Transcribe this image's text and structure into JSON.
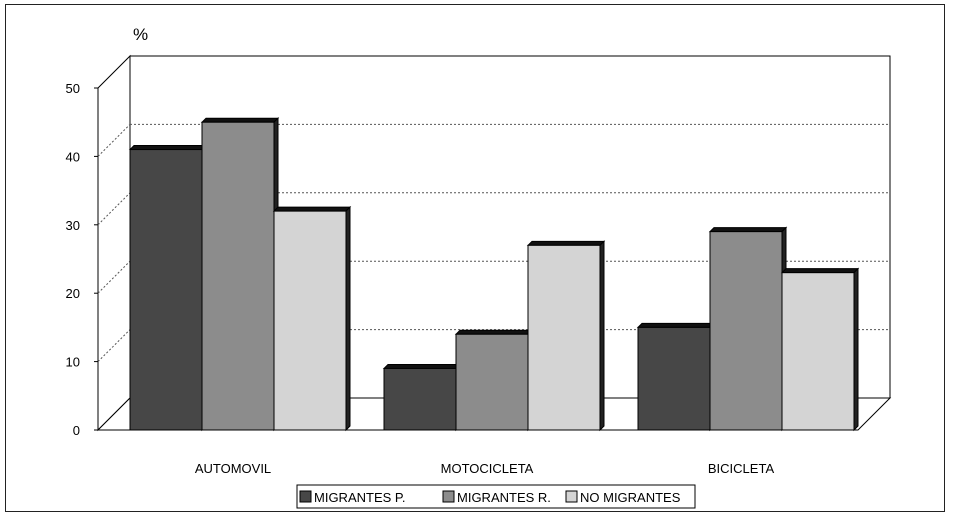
{
  "chart_data": {
    "type": "bar",
    "title": "",
    "ylabel": "%",
    "xlabel": "",
    "ylim": [
      0,
      50
    ],
    "y_ticks": [
      "0",
      "10",
      "20",
      "30",
      "40",
      "50"
    ],
    "categories": [
      "AUTOMOVIL",
      "MOTOCICLETA",
      "BICICLETA"
    ],
    "series": [
      {
        "name": "MIGRANTES P.",
        "values": [
          41,
          9,
          15
        ],
        "color": "#474747"
      },
      {
        "name": "MIGRANTES R.",
        "values": [
          45,
          14,
          29
        ],
        "color": "#8c8c8c"
      },
      {
        "name": "NO MIGRANTES",
        "values": [
          32,
          27,
          23
        ],
        "color": "#d4d4d4"
      }
    ],
    "grid": true,
    "legend_position": "bottom",
    "style": "3d"
  }
}
